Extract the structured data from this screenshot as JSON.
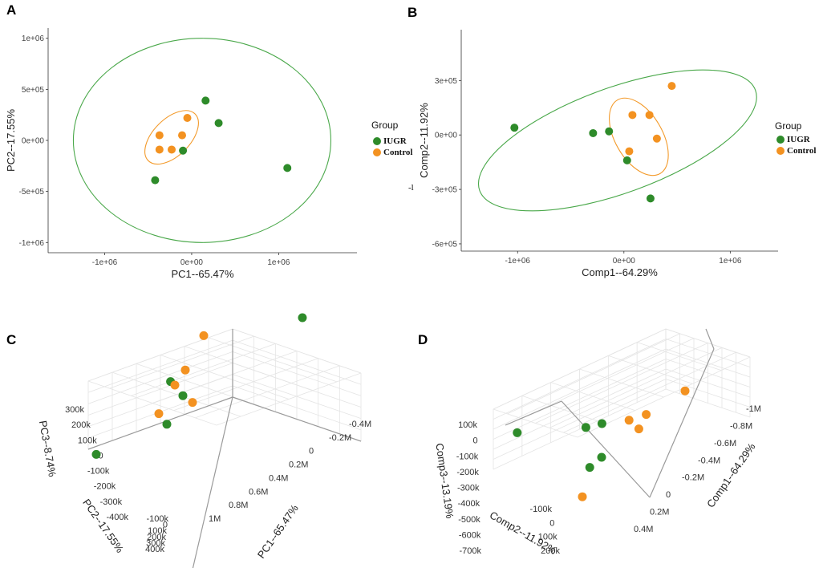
{
  "panel_labels": [
    "A",
    "B",
    "C",
    "D"
  ],
  "colors": {
    "IUGR": "#2e8b2a",
    "Control": "#f39221",
    "ellipse_IUGR": "#4aa84a",
    "ellipse_Control": "#f39a2a",
    "grid3d": "#e4e4e4",
    "axis3d": "#9a9a9a"
  },
  "legend": {
    "title": "Group",
    "items": [
      "IUGR",
      "Control"
    ]
  },
  "stray_mark": "-l",
  "chart_data": [
    {
      "id": "A",
      "type": "scatter",
      "xlabel": "PC1--65.47%",
      "ylabel": "PC2--17.55%",
      "xlim": [
        -1650000,
        1900000
      ],
      "ylim": [
        -1100000,
        1100000
      ],
      "xticks": [
        -1000000,
        0,
        1000000
      ],
      "xtick_labels": [
        "-1e+06",
        "0e+00",
        "1e+06"
      ],
      "yticks": [
        1000000,
        500000,
        0,
        -500000,
        -1000000
      ],
      "ytick_labels": [
        "1e+06",
        "5e+05",
        "0e+00",
        "-5e+05",
        "-1e+06"
      ],
      "series": [
        {
          "name": "IUGR",
          "points": [
            [
              160000,
              390000
            ],
            [
              310000,
              170000
            ],
            [
              -100000,
              -100000
            ],
            [
              -420000,
              -390000
            ],
            [
              1100000,
              -270000
            ]
          ]
        },
        {
          "name": "Control",
          "points": [
            [
              -50000,
              220000
            ],
            [
              -370000,
              50000
            ],
            [
              -110000,
              50000
            ],
            [
              -370000,
              -90000
            ],
            [
              -230000,
              -90000
            ]
          ]
        }
      ],
      "ellipses": [
        {
          "group": "IUGR",
          "cx": 120000,
          "cy": 0,
          "rx": 1480000,
          "ry": 1000000,
          "angle": 0
        },
        {
          "group": "Control",
          "cx": -230000,
          "cy": 30000,
          "rx": 380000,
          "ry": 180000,
          "angle": 45
        }
      ]
    },
    {
      "id": "B",
      "type": "scatter",
      "xlabel": "Comp1--64.29%",
      "ylabel": "Comp2--11.92%",
      "xlim": [
        -1530000,
        1450000
      ],
      "ylim": [
        -640000,
        580000
      ],
      "xticks": [
        -1000000,
        0,
        1000000
      ],
      "xtick_labels": [
        "-1e+06",
        "0e+00",
        "1e+06"
      ],
      "yticks": [
        300000,
        0,
        -300000,
        -600000
      ],
      "ytick_labels": [
        "3e+05",
        "0e+00",
        "-3e+05",
        "-6e+05"
      ],
      "series": [
        {
          "name": "IUGR",
          "points": [
            [
              -1030000,
              40000
            ],
            [
              -290000,
              10000
            ],
            [
              -140000,
              20000
            ],
            [
              30000,
              -140000
            ],
            [
              250000,
              -350000
            ]
          ]
        },
        {
          "name": "Control",
          "points": [
            [
              450000,
              270000
            ],
            [
              80000,
              110000
            ],
            [
              240000,
              110000
            ],
            [
              310000,
              -20000
            ],
            [
              50000,
              -90000
            ]
          ]
        }
      ],
      "ellipses": [
        {
          "group": "IUGR",
          "cx": -60000,
          "cy": -30000,
          "rx": 1380000,
          "ry": 290000,
          "angle": 20
        },
        {
          "group": "Control",
          "cx": 140000,
          "cy": -10000,
          "rx": 400000,
          "ry": 130000,
          "angle": -60
        }
      ]
    },
    {
      "id": "C",
      "type": "scatter3d",
      "axis_titles": [
        "PC1--65.47%",
        "PC2--17.55%",
        "PC3--8.74%"
      ],
      "x_ticks": [
        "-0.4M",
        "-0.2M",
        "0",
        "0.2M",
        "0.4M",
        "0.6M",
        "0.8M",
        "1M"
      ],
      "y_ticks": [
        "-100k",
        "0",
        "100k",
        "200k",
        "300k",
        "400k"
      ],
      "z_ticks": [
        "300k",
        "200k",
        "100k",
        "0",
        "-100k",
        "-200k",
        "-300k",
        "-400k"
      ],
      "series": [
        {
          "name": "IUGR",
          "points": [
            [
              1100000,
              50000,
              250000
            ],
            [
              -120000,
              60000,
              130000
            ],
            [
              -100000,
              20000,
              20000
            ],
            [
              0,
              50000,
              -120000
            ],
            [
              -200000,
              150000,
              -160000
            ]
          ]
        },
        {
          "name": "Control",
          "points": [
            [
              -350000,
              -20000,
              340000
            ],
            [
              -300000,
              0,
              170000
            ],
            [
              -250000,
              20000,
              100000
            ],
            [
              -150000,
              50000,
              -40000
            ],
            [
              -200000,
              -30000,
              -40000
            ]
          ]
        }
      ]
    },
    {
      "id": "D",
      "type": "scatter3d",
      "axis_titles": [
        "Comp1--64.29%",
        "Comp2--11.92%",
        "Comp3--13.19%"
      ],
      "x_ticks": [
        "-1M",
        "-0.8M",
        "-0.6M",
        "-0.4M",
        "-0.2M",
        "0",
        "0.2M",
        "0.4M"
      ],
      "y_ticks": [
        "-100k",
        "0",
        "100k",
        "200k"
      ],
      "z_ticks": [
        "100k",
        "0",
        "-100k",
        "-200k",
        "-300k",
        "-400k",
        "-500k",
        "-600k",
        "-700k"
      ],
      "series": [
        {
          "name": "IUGR",
          "points": [
            [
              -1030000,
              40000,
              250000
            ],
            [
              -290000,
              10000,
              100000
            ],
            [
              -140000,
              20000,
              80000
            ],
            [
              30000,
              -140000,
              -150000
            ],
            [
              250000,
              -350000,
              -100000
            ]
          ]
        },
        {
          "name": "Control",
          "points": [
            [
              450000,
              270000,
              40000
            ],
            [
              80000,
              110000,
              20000
            ],
            [
              240000,
              110000,
              10000
            ],
            [
              310000,
              -20000,
              -50000
            ],
            [
              50000,
              -90000,
              -320000
            ]
          ]
        }
      ]
    }
  ]
}
